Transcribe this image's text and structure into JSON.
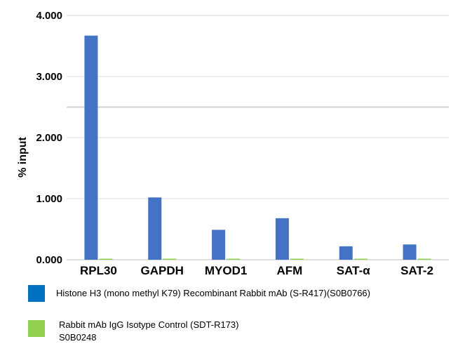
{
  "chart_data": {
    "type": "bar",
    "title": "",
    "xlabel": "",
    "ylabel": "% input",
    "ylim": [
      0,
      4
    ],
    "yticks": [
      "0.000",
      "1.000",
      "2.000",
      "3.000",
      "4.000"
    ],
    "ytick_values": [
      0,
      1,
      2,
      3,
      4
    ],
    "grid": true,
    "legend_position": "bottom",
    "categories": [
      "RPL30",
      "GAPDH",
      "MYOD1",
      "AFM",
      "SAT-α",
      "SAT-2"
    ],
    "series": [
      {
        "name": "Histone H3 (mono methyl K79) Recombinant Rabbit mAb (S-R417)(S0B0766)",
        "color": "#4472C4",
        "values": [
          3.67,
          1.02,
          0.49,
          0.68,
          0.22,
          0.25
        ]
      },
      {
        "name": "Rabbit mAb IgG Isotype Control (SDT-R173)\nS0B0248",
        "color": "#92D050",
        "values": [
          0.005,
          0.005,
          0.005,
          0.005,
          0.005,
          0.005
        ]
      }
    ]
  },
  "legend": {
    "swatch_colors": [
      "#0070C0",
      "#92D050"
    ]
  }
}
